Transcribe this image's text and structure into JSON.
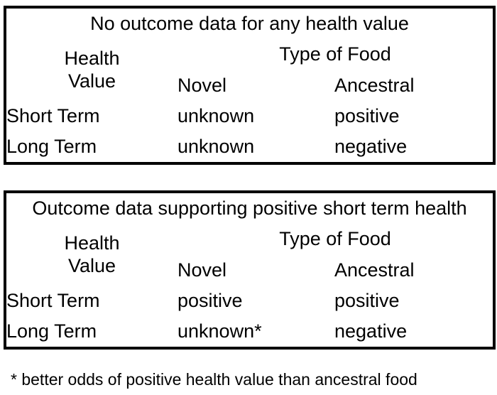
{
  "figure": {
    "background_color": "#ffffff",
    "text_color": "#000000",
    "border_color": "#000000"
  },
  "tables": [
    {
      "title": "No outcome data for any health value",
      "row_header": "Health\nValue",
      "col_group": "Type of Food",
      "columns": [
        "Novel",
        "Ancestral"
      ],
      "rows": [
        {
          "label": "Short Term",
          "cells": [
            "unknown",
            "positive"
          ]
        },
        {
          "label": "Long Term",
          "cells": [
            "unknown",
            "negative"
          ]
        }
      ]
    },
    {
      "title": "Outcome data supporting positive short term health",
      "row_header": "Health\nValue",
      "col_group": "Type of Food",
      "columns": [
        "Novel",
        "Ancestral"
      ],
      "rows": [
        {
          "label": "Short Term",
          "cells": [
            "positive",
            "positive"
          ]
        },
        {
          "label": "Long Term",
          "cells": [
            "unknown*",
            "negative"
          ]
        }
      ]
    }
  ],
  "footnote": "* better odds of positive health value than ancestral food"
}
